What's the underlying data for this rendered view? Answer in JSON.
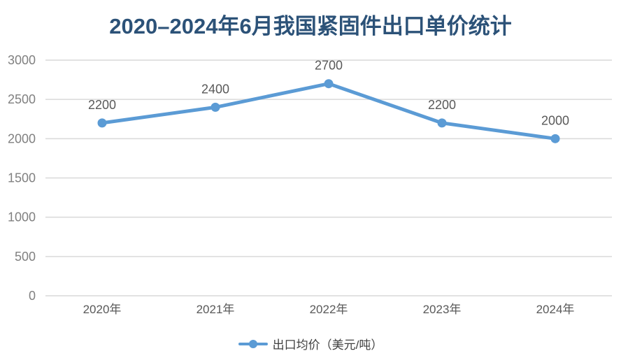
{
  "header": {
    "title": "2020–2024年6月我国紧固件出口单价统计"
  },
  "legend": {
    "label": "出口均价（美元/吨）"
  },
  "colors": {
    "title": "#2c5278",
    "series_line": "#5B9BD5",
    "gridline": "#d9d9d9",
    "axis_line": "#d9d9d9",
    "y_tick_label": "#808080",
    "x_tick_label": "#595959",
    "data_label": "#595959"
  },
  "chart_data": {
    "type": "line",
    "title": "2020–2024年6月我国紧固件出口单价统计",
    "categories": [
      "2020年",
      "2021年",
      "2022年",
      "2023年",
      "2024年"
    ],
    "series": [
      {
        "name": "出口均价（美元/吨）",
        "values": [
          2200,
          2400,
          2700,
          2200,
          2000
        ]
      }
    ],
    "data_labels": [
      "2200",
      "2400",
      "2700",
      "2200",
      "2000"
    ],
    "y_ticks": [
      0,
      500,
      1000,
      1500,
      2000,
      2500,
      3000
    ],
    "ylim": [
      0,
      3000
    ],
    "xlabel": "",
    "ylabel": "",
    "grid": true,
    "legend_position": "bottom"
  }
}
